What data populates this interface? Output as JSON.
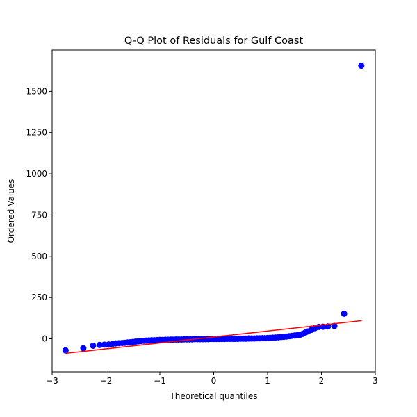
{
  "chart_data": {
    "type": "scatter",
    "title": "Q-Q Plot of Residuals for Gulf Coast",
    "xlabel": "Theoretical quantiles",
    "ylabel": "Ordered Values",
    "xlim": [
      -3,
      3
    ],
    "ylim": [
      -200,
      1750
    ],
    "xticks": [
      -3,
      -2,
      -1,
      0,
      1,
      2,
      3
    ],
    "yticks": [
      0,
      250,
      500,
      750,
      1000,
      1250,
      1500
    ],
    "grid": false,
    "point_color": "#0000ff",
    "line_color": "#ff0000",
    "fit_line": {
      "x": [
        -2.75,
        2.75
      ],
      "y": [
        -88,
        110
      ]
    },
    "series": [
      {
        "points": [
          [
            -2.75,
            -70
          ],
          [
            -2.42,
            -57
          ],
          [
            -2.24,
            -42
          ],
          [
            -2.12,
            -37
          ],
          [
            -2.03,
            -35
          ],
          [
            -1.95,
            -34
          ],
          [
            -1.88,
            -31
          ],
          [
            -1.82,
            -28
          ],
          [
            -1.76,
            -27
          ],
          [
            -1.7,
            -25
          ],
          [
            -1.65,
            -24
          ],
          [
            -1.6,
            -22
          ],
          [
            -1.55,
            -21
          ],
          [
            -1.5,
            -19
          ],
          [
            -1.45,
            -17
          ],
          [
            -1.4,
            -15
          ],
          [
            -1.35,
            -13
          ],
          [
            -1.3,
            -12
          ],
          [
            -1.25,
            -11
          ],
          [
            -1.2,
            -10
          ],
          [
            -1.15,
            -9
          ],
          [
            -1.1,
            -9
          ],
          [
            -1.05,
            -8
          ],
          [
            -1.0,
            -7
          ],
          [
            -0.95,
            -7
          ],
          [
            -0.9,
            -6
          ],
          [
            -0.85,
            -6
          ],
          [
            -0.8,
            -5
          ],
          [
            -0.75,
            -5
          ],
          [
            -0.7,
            -4
          ],
          [
            -0.65,
            -4
          ],
          [
            -0.6,
            -4
          ],
          [
            -0.55,
            -3
          ],
          [
            -0.5,
            -3
          ],
          [
            -0.45,
            -3
          ],
          [
            -0.4,
            -3
          ],
          [
            -0.35,
            -2
          ],
          [
            -0.3,
            -2
          ],
          [
            -0.25,
            -2
          ],
          [
            -0.2,
            -2
          ],
          [
            -0.15,
            -2
          ],
          [
            -0.1,
            -2
          ],
          [
            -0.05,
            -1
          ],
          [
            0.0,
            -1
          ],
          [
            0.05,
            -1
          ],
          [
            0.1,
            -1
          ],
          [
            0.15,
            -1
          ],
          [
            0.2,
            -1
          ],
          [
            0.25,
            0
          ],
          [
            0.3,
            0
          ],
          [
            0.35,
            0
          ],
          [
            0.4,
            0
          ],
          [
            0.45,
            0
          ],
          [
            0.5,
            1
          ],
          [
            0.55,
            1
          ],
          [
            0.6,
            1
          ],
          [
            0.65,
            2
          ],
          [
            0.7,
            2
          ],
          [
            0.75,
            2
          ],
          [
            0.8,
            3
          ],
          [
            0.85,
            3
          ],
          [
            0.9,
            4
          ],
          [
            0.95,
            4
          ],
          [
            1.0,
            5
          ],
          [
            1.05,
            6
          ],
          [
            1.1,
            7
          ],
          [
            1.15,
            8
          ],
          [
            1.2,
            9
          ],
          [
            1.25,
            11
          ],
          [
            1.3,
            12
          ],
          [
            1.35,
            14
          ],
          [
            1.4,
            16
          ],
          [
            1.45,
            18
          ],
          [
            1.5,
            20
          ],
          [
            1.55,
            22
          ],
          [
            1.6,
            24
          ],
          [
            1.65,
            30
          ],
          [
            1.7,
            38
          ],
          [
            1.75,
            45
          ],
          [
            1.82,
            55
          ],
          [
            1.88,
            65
          ],
          [
            1.95,
            72
          ],
          [
            2.03,
            73
          ],
          [
            2.12,
            75
          ],
          [
            2.24,
            78
          ],
          [
            2.42,
            152
          ],
          [
            2.74,
            1655
          ]
        ]
      }
    ]
  }
}
